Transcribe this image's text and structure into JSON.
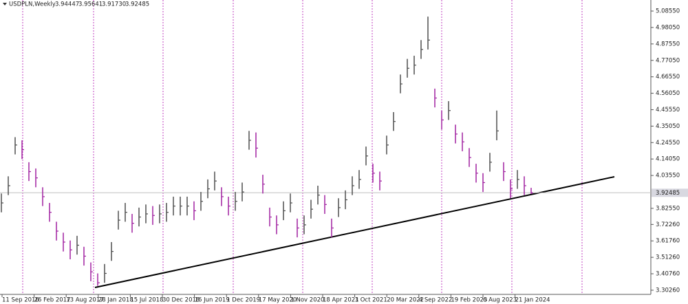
{
  "chart_data": {
    "type": "ohlc",
    "title": "USDPLN,Weekly",
    "header_values": [
      {
        "value": 3.94447,
        "label": "3.94447"
      },
      {
        "value": 3.95641,
        "label": "3.95641"
      },
      {
        "value": 3.9173,
        "label": "3.91730"
      },
      {
        "value": 3.92485,
        "label": "3.92485"
      }
    ],
    "current_price": {
      "value": 3.92485,
      "label": "3.92485"
    },
    "xtick_labels": [
      "11 Sep 2016",
      "26 Feb 2017",
      "13 Aug 2017",
      "28 Jan 2018",
      "15 Jul 2018",
      "30 Dec 2018",
      "16 Jun 2019",
      "1 Dec 2019",
      "17 May 2020",
      "1 Nov 2020",
      "18 Apr 2021",
      "3 Oct 2021",
      "20 Mar 2022",
      "4 Sep 2022",
      "19 Feb 2023",
      "6 Aug 2023",
      "21 Jan 2024"
    ],
    "values": [
      3.86,
      3.97,
      4.23,
      4.2,
      4.06,
      4.02,
      3.9,
      3.8,
      3.68,
      3.61,
      3.56,
      3.59,
      3.52,
      3.42,
      3.35,
      3.41,
      3.55,
      3.75,
      3.8,
      3.73,
      3.77,
      3.79,
      3.78,
      3.79,
      3.8,
      3.84,
      3.84,
      3.84,
      3.81,
      3.87,
      3.95,
      4.0,
      3.9,
      3.84,
      3.87,
      3.93,
      4.26,
      4.21,
      3.98,
      3.77,
      3.72,
      3.81,
      3.86,
      3.7,
      3.72,
      3.82,
      3.91,
      3.85,
      3.7,
      3.83,
      3.88,
      3.97,
      4.01,
      4.16,
      4.05,
      4.0,
      4.23,
      4.38,
      4.62,
      4.72,
      4.74,
      4.84,
      4.9,
      4.53,
      4.39,
      4.45,
      4.3,
      4.25,
      4.15,
      4.05,
      3.99,
      4.12,
      4.32,
      4.06,
      3.95,
      4.01,
      3.97,
      3.92485
    ],
    "high": [
      3.92,
      4.03,
      4.28,
      4.26,
      4.12,
      4.08,
      3.96,
      3.86,
      3.74,
      3.67,
      3.62,
      3.65,
      3.58,
      3.48,
      3.41,
      3.47,
      3.61,
      3.81,
      3.86,
      3.79,
      3.83,
      3.85,
      3.84,
      3.85,
      3.86,
      3.9,
      3.9,
      3.9,
      3.87,
      3.93,
      4.01,
      4.06,
      3.96,
      3.9,
      3.93,
      3.99,
      4.32,
      4.31,
      4.04,
      3.83,
      3.78,
      3.87,
      3.92,
      3.76,
      3.78,
      3.88,
      3.97,
      3.91,
      3.76,
      3.89,
      3.94,
      4.03,
      4.07,
      4.22,
      4.11,
      4.06,
      4.29,
      4.44,
      4.68,
      4.78,
      4.8,
      4.9,
      5.05,
      4.59,
      4.45,
      4.51,
      4.36,
      4.31,
      4.21,
      4.11,
      4.05,
      4.18,
      4.45,
      4.12,
      4.01,
      4.07,
      4.03,
      3.95641
    ],
    "low": [
      3.8,
      3.91,
      4.17,
      4.14,
      4.0,
      3.96,
      3.84,
      3.74,
      3.62,
      3.55,
      3.5,
      3.53,
      3.46,
      3.36,
      3.33,
      3.35,
      3.49,
      3.69,
      3.74,
      3.67,
      3.71,
      3.73,
      3.72,
      3.73,
      3.74,
      3.78,
      3.78,
      3.78,
      3.75,
      3.81,
      3.89,
      3.94,
      3.84,
      3.78,
      3.81,
      3.87,
      4.2,
      4.15,
      3.92,
      3.71,
      3.66,
      3.75,
      3.8,
      3.64,
      3.66,
      3.76,
      3.85,
      3.79,
      3.64,
      3.77,
      3.82,
      3.91,
      3.95,
      4.1,
      3.99,
      3.94,
      4.17,
      4.32,
      4.56,
      4.66,
      4.68,
      4.78,
      4.84,
      4.47,
      4.33,
      4.39,
      4.24,
      4.19,
      4.09,
      3.99,
      3.93,
      4.06,
      4.26,
      4.0,
      3.89,
      3.95,
      3.91,
      3.9173
    ],
    "up_color": "#4d4d4d",
    "down_color": "#a020a0",
    "ylim": [
      3.276,
      5.156
    ],
    "yticks": [
      {
        "value": 5.0855,
        "label": "5.08550"
      },
      {
        "value": 4.9805,
        "label": "4.98050"
      },
      {
        "value": 4.8755,
        "label": "4.87550"
      },
      {
        "value": 4.7705,
        "label": "4.77050"
      },
      {
        "value": 4.6655,
        "label": "4.66550"
      },
      {
        "value": 4.5605,
        "label": "4.56050"
      },
      {
        "value": 4.4555,
        "label": "4.45550"
      },
      {
        "value": 4.3505,
        "label": "4.35050"
      },
      {
        "value": 4.2455,
        "label": "4.24550"
      },
      {
        "value": 4.1405,
        "label": "4.14050"
      },
      {
        "value": 4.0355,
        "label": "4.03550"
      },
      {
        "value": 3.8255,
        "label": "3.82550"
      },
      {
        "value": 3.7226,
        "label": "3.72260"
      },
      {
        "value": 3.6176,
        "label": "3.61760"
      },
      {
        "value": 3.5126,
        "label": "3.51260"
      },
      {
        "value": 3.4076,
        "label": "3.40760"
      },
      {
        "value": 3.3026,
        "label": "3.30260"
      }
    ]
  }
}
